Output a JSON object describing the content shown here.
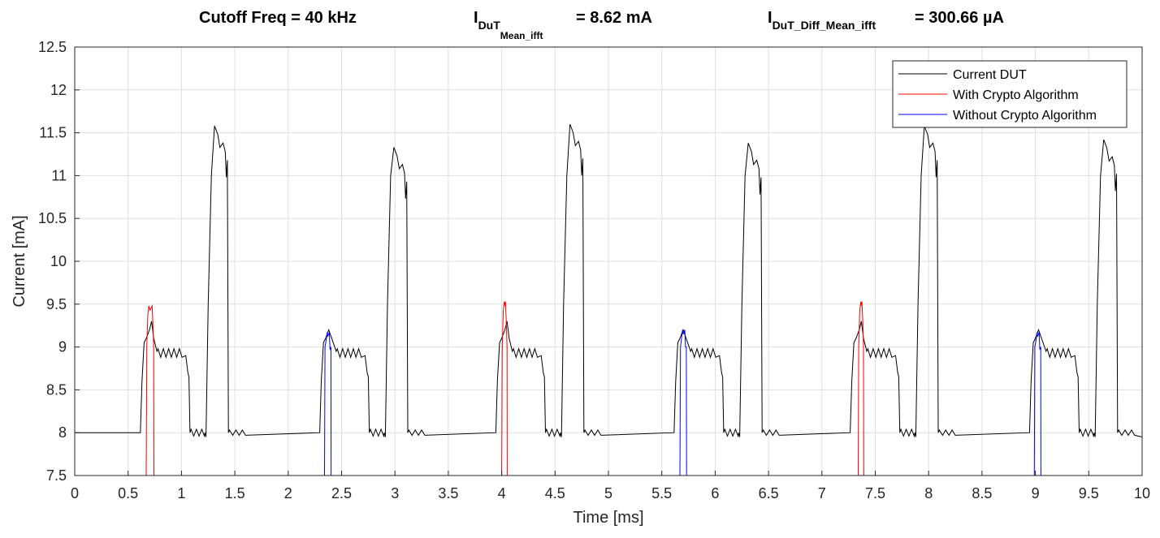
{
  "headers": {
    "cutoff": "Cutoff Freq = 40 kHz",
    "mean_main": "I",
    "mean_sub": "DuT",
    "mean_subsub": "Mean_ifft",
    "mean_value": "= 8.62 mA",
    "diff_main": "I",
    "diff_sub": "DuT_Diff_Mean_ifft",
    "diff_value": "= 300.66 µA"
  },
  "chart_data": {
    "type": "line",
    "xlabel": "Time [ms]",
    "ylabel": "Current [mA]",
    "xlim": [
      0,
      10
    ],
    "ylim": [
      7.5,
      12.5
    ],
    "xticks": [
      0,
      0.5,
      1,
      1.5,
      2,
      2.5,
      3,
      3.5,
      4,
      4.5,
      5,
      5.5,
      6,
      6.5,
      7,
      7.5,
      8,
      8.5,
      9,
      9.5,
      10
    ],
    "xtick_labels": [
      "0",
      "0.5",
      "1",
      "1.5",
      "2",
      "2.5",
      "3",
      "3.5",
      "4",
      "4.5",
      "5",
      "5.5",
      "6",
      "6.5",
      "7",
      "7.5",
      "8",
      "8.5",
      "9",
      "9.5",
      "10"
    ],
    "yticks": [
      7.5,
      8,
      8.5,
      9,
      9.5,
      10,
      10.5,
      11,
      11.5,
      12,
      12.5
    ],
    "ytick_labels": [
      "7.5",
      "8",
      "8.5",
      "9",
      "9.5",
      "10",
      "10.5",
      "11",
      "11.5",
      "12",
      "12.5"
    ],
    "grid": true,
    "legend_position": "top-right",
    "cycle_starts": [
      0.62,
      2.3,
      3.95,
      5.62,
      7.27,
      8.95
    ],
    "peak_levels": [
      11.58,
      11.33,
      11.6,
      11.38,
      11.58,
      11.42
    ],
    "crypto_peaks": [
      9.48,
      0,
      9.53,
      0,
      9.53,
      0
    ],
    "series": [
      {
        "name": "Current DUT",
        "color": "#000000",
        "baseline": 8.0,
        "shoulder_level": 8.93,
        "description_values": {
          "first_bump": 9.3,
          "mid_level": 8.93,
          "low": 8.0
        }
      },
      {
        "name": "With Crypto Algorithm",
        "color": "#ff0000",
        "windows": [
          [
            0.67,
            0.74
          ],
          [
            4.0,
            4.05
          ],
          [
            7.34,
            7.39
          ]
        ],
        "peaks": [
          9.48,
          9.53,
          9.53
        ],
        "drop_to": 7.5
      },
      {
        "name": "Without Crypto Algorithm",
        "color": "#0000ff",
        "windows": [
          [
            2.34,
            2.4
          ],
          [
            5.67,
            5.73
          ],
          [
            8.99,
            9.05
          ]
        ],
        "peaks": [
          9.17,
          9.2,
          9.17
        ],
        "drop_to": 7.5
      }
    ]
  }
}
